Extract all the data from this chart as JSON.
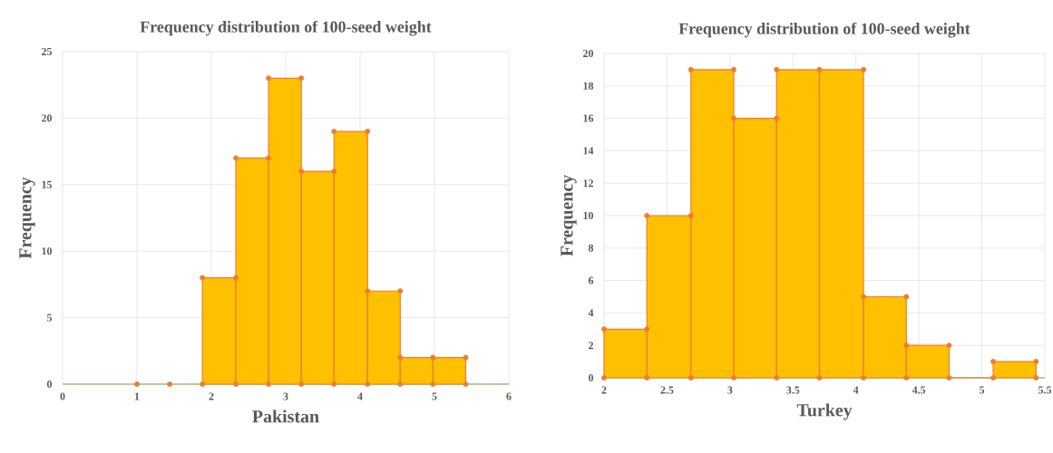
{
  "chart_data": [
    {
      "type": "histogram",
      "title": "Frequency distribution of 100-seed weight",
      "xlabel": "Pakistan",
      "ylabel": "Frequency",
      "series": [
        {
          "color": "#ffc000",
          "bins": [
            1.88,
            2.33,
            2.77,
            3.21,
            3.65,
            4.1,
            4.54,
            4.98,
            5.42
          ],
          "values": [
            8,
            17,
            23,
            16,
            19,
            7,
            2,
            2
          ]
        },
        {
          "type": "scatter",
          "color": "#ed7d31",
          "x": [
            1.88,
            2.33,
            2.33,
            2.77,
            2.77,
            3.21,
            3.21,
            3.65,
            3.65,
            4.1,
            4.1,
            4.54,
            4.54,
            4.98,
            5.42,
            1.0,
            1.44,
            1.88,
            2.33,
            2.77,
            3.21,
            3.65,
            4.1,
            4.54,
            4.98,
            5.42
          ],
          "values": [
            8,
            8,
            17,
            17,
            23,
            23,
            16,
            16,
            19,
            19,
            7,
            7,
            2,
            2,
            2,
            0,
            0,
            0,
            0,
            0,
            0,
            0,
            0,
            0,
            0,
            0
          ]
        }
      ],
      "xlim": [
        0,
        6
      ],
      "xticks": [
        0,
        1,
        2,
        3,
        4,
        5,
        6
      ],
      "ylim": [
        0,
        25
      ],
      "yticks": [
        0,
        5,
        10,
        15,
        20,
        25
      ],
      "grid": true,
      "marker": "circle"
    },
    {
      "type": "histogram",
      "title": "Frequency distribution of 100-seed weight",
      "xlabel": "Turkey",
      "ylabel": "Frequency",
      "series": [
        {
          "color": "#ffc000",
          "bins": [
            2.0,
            2.34,
            2.69,
            3.03,
            3.37,
            3.71,
            4.06,
            4.4,
            4.74,
            5.09,
            5.43
          ],
          "values": [
            3,
            10,
            19,
            16,
            19,
            19,
            5,
            2,
            0,
            1
          ]
        },
        {
          "type": "scatter",
          "color": "#ed7d31",
          "x": [
            2.0,
            2.34,
            2.34,
            2.69,
            2.69,
            3.03,
            3.03,
            3.37,
            3.37,
            3.71,
            4.06,
            4.06,
            4.4,
            4.4,
            4.74,
            5.09,
            5.43,
            2.0,
            2.34,
            2.69,
            3.03,
            3.37,
            3.71,
            4.06,
            4.4,
            4.74,
            5.09,
            5.43
          ],
          "values": [
            3,
            3,
            10,
            10,
            19,
            19,
            16,
            16,
            19,
            19,
            19,
            5,
            5,
            2,
            2,
            1,
            1,
            0,
            0,
            0,
            0,
            0,
            0,
            0,
            0,
            0,
            0,
            0
          ]
        }
      ],
      "xlim": [
        2,
        5.5
      ],
      "xticks": [
        2,
        2.5,
        3,
        3.5,
        4,
        4.5,
        5,
        5.5
      ],
      "ylim": [
        0,
        20
      ],
      "yticks": [
        0,
        2,
        4,
        6,
        8,
        10,
        12,
        14,
        16,
        18,
        20
      ],
      "grid": true,
      "marker": "circle"
    }
  ]
}
